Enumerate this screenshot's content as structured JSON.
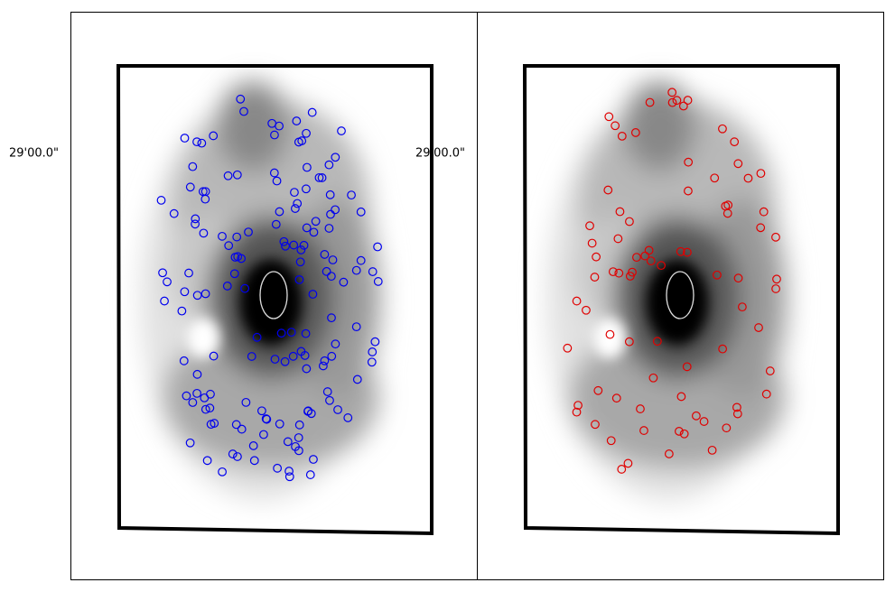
{
  "panels": [
    {
      "label": "29'00.0\""
    },
    {
      "label": "29'00.0\""
    }
  ]
}
